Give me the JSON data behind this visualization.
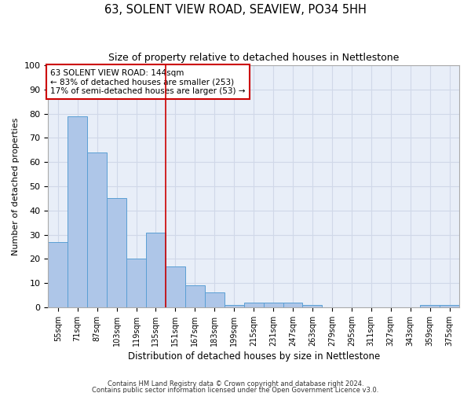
{
  "title": "63, SOLENT VIEW ROAD, SEAVIEW, PO34 5HH",
  "subtitle": "Size of property relative to detached houses in Nettlestone",
  "xlabel": "Distribution of detached houses by size in Nettlestone",
  "ylabel": "Number of detached properties",
  "bin_labels": [
    "55sqm",
    "71sqm",
    "87sqm",
    "103sqm",
    "119sqm",
    "135sqm",
    "151sqm",
    "167sqm",
    "183sqm",
    "199sqm",
    "215sqm",
    "231sqm",
    "247sqm",
    "263sqm",
    "279sqm",
    "295sqm",
    "311sqm",
    "327sqm",
    "343sqm",
    "359sqm",
    "375sqm"
  ],
  "bar_values": [
    27,
    79,
    64,
    45,
    20,
    31,
    17,
    9,
    6,
    1,
    2,
    2,
    2,
    1,
    0,
    0,
    0,
    0,
    0,
    1,
    1
  ],
  "bar_color": "#aec6e8",
  "bar_edge_color": "#5a9fd4",
  "reference_line_x": 5.5,
  "reference_line_color": "#cc0000",
  "annotation_text": "63 SOLENT VIEW ROAD: 144sqm\n← 83% of detached houses are smaller (253)\n17% of semi-detached houses are larger (53) →",
  "annotation_box_color": "#ffffff",
  "annotation_box_edge_color": "#cc0000",
  "ylim": [
    0,
    100
  ],
  "yticks": [
    0,
    10,
    20,
    30,
    40,
    50,
    60,
    70,
    80,
    90,
    100
  ],
  "grid_color": "#d0d8e8",
  "background_color": "#e8eef8",
  "footnote1": "Contains HM Land Registry data © Crown copyright and database right 2024.",
  "footnote2": "Contains public sector information licensed under the Open Government Licence v3.0."
}
